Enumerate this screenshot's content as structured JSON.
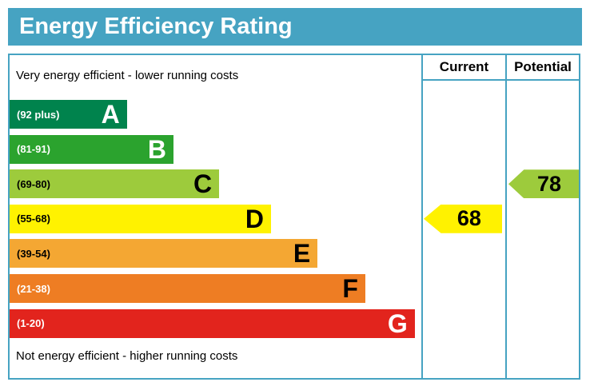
{
  "title": "Energy Efficiency Rating",
  "columns": {
    "current": "Current",
    "potential": "Potential"
  },
  "captions": {
    "top": "Very energy efficient - lower running costs",
    "bottom": "Not energy efficient - higher running costs"
  },
  "bands": [
    {
      "letter": "A",
      "range": "(92 plus)",
      "color": "#00834d",
      "range_color": "#ffffff",
      "letter_color": "#ffffff",
      "width_pct": 28.5
    },
    {
      "letter": "B",
      "range": "(81-91)",
      "color": "#2ba32e",
      "range_color": "#ffffff",
      "letter_color": "#ffffff",
      "width_pct": 39.8
    },
    {
      "letter": "C",
      "range": "(69-80)",
      "color": "#9dcb3c",
      "range_color": "#000000",
      "letter_color": "#000000",
      "width_pct": 50.9
    },
    {
      "letter": "D",
      "range": "(55-68)",
      "color": "#fff200",
      "range_color": "#000000",
      "letter_color": "#000000",
      "width_pct": 63.5
    },
    {
      "letter": "E",
      "range": "(39-54)",
      "color": "#f4a733",
      "range_color": "#000000",
      "letter_color": "#000000",
      "width_pct": 74.8
    },
    {
      "letter": "F",
      "range": "(21-38)",
      "color": "#ee7d23",
      "range_color": "#ffffff",
      "letter_color": "#000000",
      "width_pct": 86.4
    },
    {
      "letter": "G",
      "range": "(1-20)",
      "color": "#e2241d",
      "range_color": "#ffffff",
      "letter_color": "#ffffff",
      "width_pct": 98.4
    }
  ],
  "ratings": {
    "current": {
      "value": "68",
      "band": "D",
      "color": "#fff200"
    },
    "potential": {
      "value": "78",
      "band": "C",
      "color": "#9dcb3c"
    }
  },
  "colors": {
    "accent": "#46a3c2",
    "title_text": "#ffffff",
    "background": "#ffffff"
  },
  "chart_data": {
    "type": "bar",
    "title": "Energy Efficiency Rating",
    "categories": [
      "A",
      "B",
      "C",
      "D",
      "E",
      "F",
      "G"
    ],
    "band_ranges": [
      "92 plus",
      "81-91",
      "69-80",
      "55-68",
      "39-54",
      "21-38",
      "1-20"
    ],
    "bar_length_pct": [
      28.5,
      39.8,
      50.9,
      63.5,
      74.8,
      86.4,
      98.4
    ],
    "series": [
      {
        "name": "Current",
        "value": 68,
        "band": "D"
      },
      {
        "name": "Potential",
        "value": 78,
        "band": "C"
      }
    ],
    "annotations": [
      "Very energy efficient - lower running costs",
      "Not energy efficient - higher running costs"
    ],
    "legend_position": "none",
    "grid": false
  }
}
